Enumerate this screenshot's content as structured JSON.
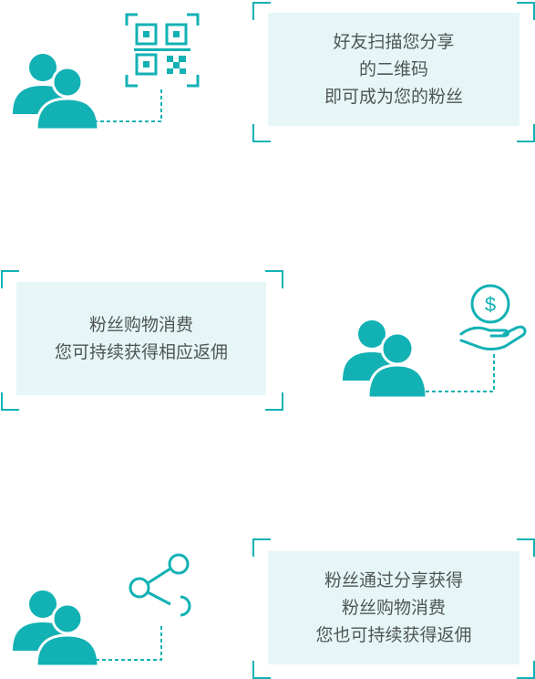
{
  "colors": {
    "accent": "#12b1b4",
    "box_bg": "#e6f6f7",
    "text": "#4f5556"
  },
  "steps": [
    {
      "icon": "qr-code-icon",
      "lines": [
        "好友扫描您分享",
        "的二维码",
        "即可成为您的粉丝"
      ]
    },
    {
      "icon": "coin-hand-icon",
      "lines": [
        "粉丝购物消费",
        "您可持续获得相应返佣"
      ]
    },
    {
      "icon": "share-icon",
      "lines": [
        "粉丝通过分享获得",
        "粉丝购物消费",
        "您也可持续获得返佣"
      ]
    }
  ]
}
